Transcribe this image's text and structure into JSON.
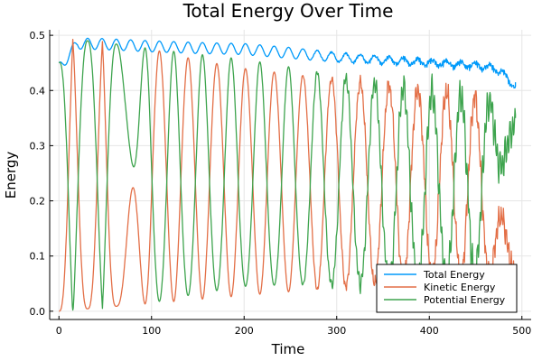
{
  "chart_data": {
    "type": "line",
    "title": "Total Energy Over Time",
    "xlabel": "Time",
    "ylabel": "Energy",
    "xlim": [
      -10,
      510
    ],
    "ylim": [
      -0.015,
      0.51
    ],
    "x_ticks": [
      0,
      100,
      200,
      300,
      400,
      500
    ],
    "y_ticks": [
      0.0,
      0.1,
      0.2,
      0.3,
      0.4,
      0.5
    ],
    "x_tick_labels": [
      "0",
      "100",
      "200",
      "300",
      "400",
      "500"
    ],
    "y_tick_labels": [
      "0.0",
      "0.1",
      "0.2",
      "0.3",
      "0.4",
      "0.5"
    ],
    "grid": true,
    "legend_position": "bottom-right",
    "x_range": [
      0,
      493
    ],
    "period": 31,
    "series": [
      {
        "name": "Total Energy",
        "color": "#009AFA",
        "x": [
          0,
          20,
          50,
          100,
          150,
          200,
          250,
          300,
          350,
          400,
          450,
          470,
          480,
          493
        ],
        "values": [
          0.45,
          0.495,
          0.494,
          0.49,
          0.487,
          0.485,
          0.478,
          0.47,
          0.465,
          0.46,
          0.455,
          0.45,
          0.44,
          0.415
        ]
      },
      {
        "name": "Kinetic Energy",
        "color": "#E36F47",
        "x": [
          0,
          15,
          31,
          47,
          62,
          100,
          150,
          200,
          250,
          300,
          350,
          400,
          450,
          493
        ],
        "values": [
          0.0,
          0.494,
          0.015,
          0.49,
          0.025,
          0.475,
          0.455,
          0.44,
          0.43,
          0.42,
          0.41,
          0.4,
          0.39,
          0.065
        ]
      },
      {
        "name": "Potential Energy",
        "color": "#3EA44E",
        "x": [
          0,
          15,
          31,
          47,
          62,
          100,
          150,
          200,
          250,
          300,
          350,
          400,
          450,
          493
        ],
        "values": [
          0.45,
          0.0,
          0.48,
          0.005,
          0.465,
          0.46,
          0.44,
          0.43,
          0.415,
          0.38,
          0.37,
          0.36,
          0.35,
          0.35
        ]
      }
    ]
  }
}
